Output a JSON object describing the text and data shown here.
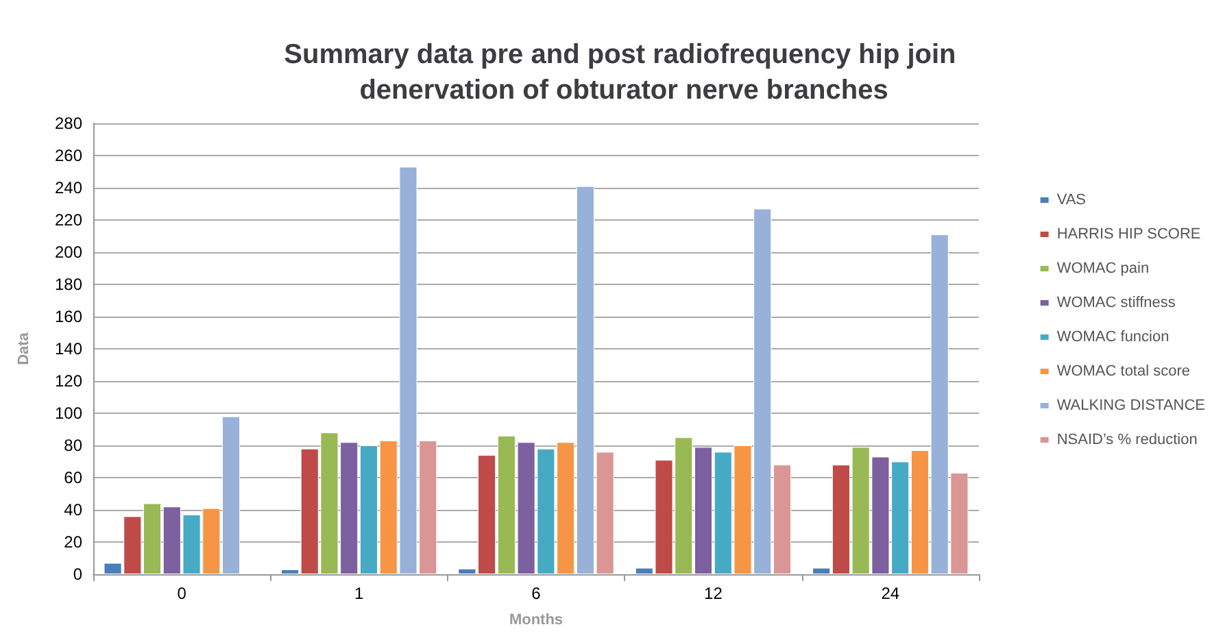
{
  "chart_data": {
    "type": "bar",
    "title": "Summary data pre and post radiofrequency hip join denervation of obturator nerve branches",
    "xlabel": "Months",
    "ylabel": "Data",
    "categories": [
      "0",
      "1",
      "6",
      "12",
      "24"
    ],
    "series": [
      {
        "name": "VAS",
        "color": "#4a7ebb",
        "values": [
          7,
          3,
          3.5,
          4,
          4
        ]
      },
      {
        "name": "HARRIS HIP SCORE",
        "color": "#be4b48",
        "values": [
          36,
          78,
          74,
          71,
          68
        ]
      },
      {
        "name": "WOMAC pain",
        "color": "#98b954",
        "values": [
          44,
          88,
          86,
          85,
          79
        ]
      },
      {
        "name": "WOMAC stiffness",
        "color": "#7d60a0",
        "values": [
          42,
          82,
          82,
          79,
          73
        ]
      },
      {
        "name": "WOMAC funcion",
        "color": "#46aac5",
        "values": [
          37,
          80,
          78,
          76,
          70
        ]
      },
      {
        "name": "WOMAC total score",
        "color": "#f69546",
        "values": [
          41,
          83,
          82,
          80,
          77
        ]
      },
      {
        "name": "WALKING DISTANCE",
        "color": "#98b1d8",
        "values": [
          98,
          253,
          241,
          227,
          211
        ]
      },
      {
        "name": "NSAID’s % reduction",
        "color": "#d99694",
        "values": [
          null,
          83,
          76,
          68,
          63
        ]
      }
    ],
    "ylim": [
      0,
      280
    ],
    "yticks": [
      0,
      20,
      40,
      60,
      80,
      100,
      120,
      140,
      160,
      180,
      200,
      220,
      240,
      260,
      280
    ],
    "grid": "y",
    "legend": "right"
  }
}
